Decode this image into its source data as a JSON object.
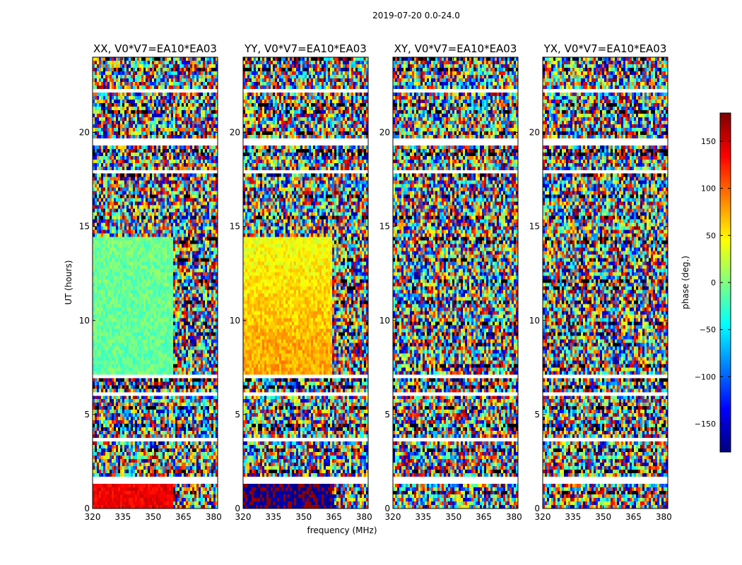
{
  "figure": {
    "suptitle": "2019-07-20 0.0-24.0"
  },
  "chart_data": {
    "type": "heatmap",
    "quantity": "visibility phase vs frequency and time",
    "xlabel": "frequency (MHz)",
    "ylabel": "UT (hours)",
    "xlim": [
      320,
      382
    ],
    "ylim": [
      0,
      24
    ],
    "xticks": [
      320,
      335,
      350,
      365,
      380
    ],
    "yticks": [
      0,
      5,
      10,
      15,
      20
    ],
    "panels": [
      {
        "title": "XX, V0*V7=EA10*EA03",
        "pol": "XX",
        "band_phase": [
          -5,
          -10
        ],
        "rfi_edge_mhz": 359.5,
        "early_phase": 140,
        "early_edge_mhz": 359.5
      },
      {
        "title": "YY, V0*V7=EA10*EA03",
        "pol": "YY",
        "band_phase": [
          40,
          75
        ],
        "rfi_edge_mhz": 364.0,
        "early_phase": -175,
        "early_edge_mhz": 364.0
      },
      {
        "title": "XY, V0*V7=EA10*EA03",
        "pol": "XY",
        "band_phase": null,
        "rfi_edge_mhz": null,
        "early_phase": null,
        "early_edge_mhz": null
      },
      {
        "title": "YX, V0*V7=EA10*EA03",
        "pol": "YX",
        "band_phase": null,
        "rfi_edge_mhz": null,
        "early_phase": null,
        "early_edge_mhz": null
      }
    ],
    "flagged_ut_hours": [
      [
        1.35,
        1.7
      ],
      [
        3.55,
        3.7
      ],
      [
        5.95,
        6.2
      ],
      [
        7.0,
        7.2
      ],
      [
        14.4,
        14.5
      ],
      [
        17.85,
        18.0
      ],
      [
        19.4,
        19.6
      ],
      [
        22.2,
        22.35
      ]
    ],
    "colorbar": {
      "label": "phase (deg.)",
      "range": [
        -180,
        180
      ],
      "ticks": [
        -150,
        -100,
        -50,
        0,
        50,
        100,
        150
      ],
      "tick_labels": [
        "−150",
        "−100",
        "−50",
        "0",
        "50",
        "100",
        "150"
      ],
      "colormap": "jet"
    }
  }
}
